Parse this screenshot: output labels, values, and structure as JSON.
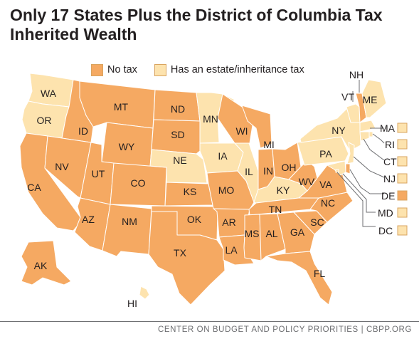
{
  "title": "Only 17 States Plus the District of Columbia Tax Inherited Wealth",
  "legend": {
    "no_tax": {
      "label": "No tax",
      "color": "#f5a962"
    },
    "tax": {
      "label": "Has an estate/inheritance tax",
      "color": "#fde3ae"
    }
  },
  "states": [
    {
      "abbr": "WA",
      "tax": true
    },
    {
      "abbr": "OR",
      "tax": true
    },
    {
      "abbr": "CA",
      "tax": false
    },
    {
      "abbr": "ID",
      "tax": false
    },
    {
      "abbr": "NV",
      "tax": false
    },
    {
      "abbr": "MT",
      "tax": false
    },
    {
      "abbr": "WY",
      "tax": false
    },
    {
      "abbr": "UT",
      "tax": false
    },
    {
      "abbr": "AZ",
      "tax": false
    },
    {
      "abbr": "CO",
      "tax": false
    },
    {
      "abbr": "NM",
      "tax": false
    },
    {
      "abbr": "ND",
      "tax": false
    },
    {
      "abbr": "SD",
      "tax": false
    },
    {
      "abbr": "NE",
      "tax": true
    },
    {
      "abbr": "KS",
      "tax": false
    },
    {
      "abbr": "OK",
      "tax": false
    },
    {
      "abbr": "TX",
      "tax": false
    },
    {
      "abbr": "MN",
      "tax": true
    },
    {
      "abbr": "IA",
      "tax": true
    },
    {
      "abbr": "MO",
      "tax": false
    },
    {
      "abbr": "AR",
      "tax": false
    },
    {
      "abbr": "LA",
      "tax": false
    },
    {
      "abbr": "WI",
      "tax": false
    },
    {
      "abbr": "IL",
      "tax": true
    },
    {
      "abbr": "MI",
      "tax": false
    },
    {
      "abbr": "IN",
      "tax": false
    },
    {
      "abbr": "OH",
      "tax": false
    },
    {
      "abbr": "KY",
      "tax": true
    },
    {
      "abbr": "TN",
      "tax": false
    },
    {
      "abbr": "MS",
      "tax": false
    },
    {
      "abbr": "AL",
      "tax": false
    },
    {
      "abbr": "GA",
      "tax": false
    },
    {
      "abbr": "FL",
      "tax": false
    },
    {
      "abbr": "SC",
      "tax": false
    },
    {
      "abbr": "NC",
      "tax": false
    },
    {
      "abbr": "VA",
      "tax": false
    },
    {
      "abbr": "WV",
      "tax": false
    },
    {
      "abbr": "PA",
      "tax": true
    },
    {
      "abbr": "NY",
      "tax": true
    },
    {
      "abbr": "VT",
      "tax": true
    },
    {
      "abbr": "NH",
      "tax": false
    },
    {
      "abbr": "ME",
      "tax": true
    },
    {
      "abbr": "MA",
      "tax": true
    },
    {
      "abbr": "RI",
      "tax": true
    },
    {
      "abbr": "CT",
      "tax": true
    },
    {
      "abbr": "NJ",
      "tax": true
    },
    {
      "abbr": "DE",
      "tax": false
    },
    {
      "abbr": "MD",
      "tax": true
    },
    {
      "abbr": "DC",
      "tax": true
    },
    {
      "abbr": "AK",
      "tax": false
    },
    {
      "abbr": "HI",
      "tax": true
    }
  ],
  "footer": "CENTER ON BUDGET AND POLICY PRIORITIES | CBPP.ORG"
}
